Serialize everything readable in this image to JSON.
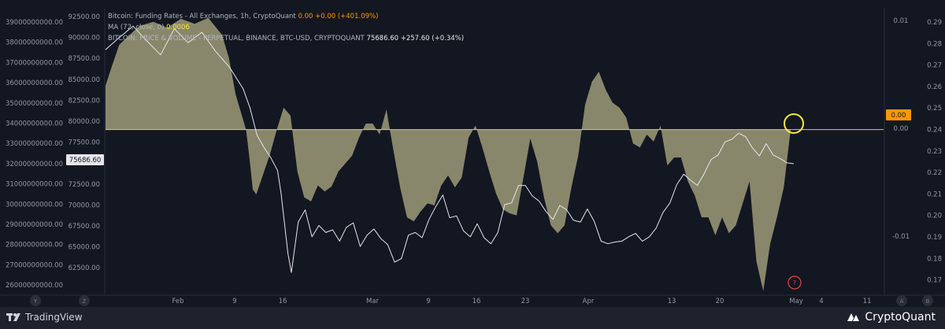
{
  "legend": {
    "line1_name": "Bitcoin: Funding Rates - All Exchanges, 1h, CryptoQuant",
    "line1_values": "0.00  +0.00 (+401.09%)",
    "line2_name": "MA (72, close, 0)",
    "line2_value": "0.0006",
    "line3_name": "BITCOIN: PRICE & VOLUME - PERPETUAL, BINANCE, BTC-USD, CRYPTOQUANT",
    "line3_price": "75686.60",
    "line3_change": "+257.60 (+0.34%)"
  },
  "left_axis_1": [
    "39000000000.00",
    "38000000000.00",
    "37000000000.00",
    "36000000000.00",
    "35000000000.00",
    "34000000000.00",
    "33000000000.00",
    "32000000000.00",
    "31000000000.00",
    "30000000000.00",
    "29000000000.00",
    "28000000000.00",
    "27000000000.00",
    "26000000000.00"
  ],
  "left_axis_2": [
    "92500.00",
    "90000.00",
    "87500.00",
    "85000.00",
    "82500.00",
    "80000.00",
    "77500.00",
    "75000.00",
    "72500.00",
    "70000.00",
    "67500.00",
    "65000.00",
    "62500.00"
  ],
  "price_badge": "75686.60",
  "right_axis_1": [
    "0.01",
    "0.00",
    "-0.01"
  ],
  "right_axis_2": [
    "0.29",
    "0.28",
    "0.27",
    "0.26",
    "0.25",
    "0.24",
    "0.23",
    "0.22",
    "0.21",
    "0.20",
    "0.19",
    "0.18",
    "0.17"
  ],
  "funding_badge": "0.00",
  "x_ticks": [
    "Feb",
    "9",
    "16",
    "Mar",
    "9",
    "16",
    "23",
    "Apr",
    "13",
    "20",
    "May",
    "4",
    "11"
  ],
  "corner_left_1": "Y",
  "corner_left_2": "Z",
  "corner_right_1": "A",
  "corner_right_2": "B",
  "marker_question": "?",
  "footer": {
    "left_brand": "TradingView",
    "right_brand": "CryptoQuant"
  },
  "colors": {
    "background": "#131722",
    "area_fill": "#8f8d70",
    "price_line": "#e6e6ea",
    "highlight_circle": "#f5e642",
    "marker_circle": "#e24a3b",
    "funding_badge": "#ff9800"
  },
  "chart_data": {
    "type": "area",
    "series": [
      {
        "name": "Bitcoin: Funding Rates - All Exchanges, 1h, CryptoQuant",
        "x": [
          0,
          0.01,
          0.02,
          0.04,
          0.05,
          0.07,
          0.09,
          0.11,
          0.13,
          0.15,
          0.17,
          0.18,
          0.19,
          0.205,
          0.21,
          0.215,
          0.22,
          0.225,
          0.23,
          0.24,
          0.25,
          0.26,
          0.27,
          0.28,
          0.29,
          0.3,
          0.31,
          0.32,
          0.33,
          0.34,
          0.35,
          0.36,
          0.37,
          0.38,
          0.39,
          0.4,
          0.41,
          0.42,
          0.43,
          0.44,
          0.45,
          0.46,
          0.47,
          0.48,
          0.49,
          0.5,
          0.51,
          0.52,
          0.53,
          0.54,
          0.55,
          0.56,
          0.57,
          0.58,
          0.59,
          0.6,
          0.61,
          0.62,
          0.63,
          0.64,
          0.65,
          0.66,
          0.67,
          0.68,
          0.69,
          0.7,
          0.71,
          0.72,
          0.73,
          0.74,
          0.75,
          0.76,
          0.77,
          0.78,
          0.79,
          0.8,
          0.81,
          0.82,
          0.83,
          0.84,
          0.85,
          0.86,
          0.87,
          0.88,
          0.89,
          0.9,
          0.91,
          0.92,
          0.93,
          0.94,
          0.95,
          0.96,
          0.97,
          0.98,
          0.99,
          1
        ],
        "y": [
          0.0044,
          0.0065,
          0.0085,
          0.0098,
          0.0104,
          0.0108,
          0.0102,
          0.0111,
          0.0106,
          0.0112,
          0.0095,
          0.0072,
          0.0035,
          0,
          -0.0028,
          -0.006,
          -0.0065,
          -0.0055,
          -0.0045,
          -0.0025,
          0,
          0.0022,
          0.0014,
          -0.0042,
          -0.0068,
          -0.0072,
          -0.0056,
          -0.0062,
          -0.0057,
          -0.0042,
          -0.0034,
          -0.0026,
          -0.0008,
          0.0006,
          0.0006,
          -0.0005,
          0.002,
          -0.002,
          -0.0058,
          -0.0088,
          -0.0092,
          -0.0082,
          -0.0074,
          -0.0076,
          -0.0056,
          -0.0046,
          -0.0058,
          -0.0048,
          -0.0008,
          0.0004,
          -0.0018,
          -0.0042,
          -0.0064,
          -0.008,
          -0.0084,
          -0.0086,
          -0.0048,
          -0.0009,
          -0.0032,
          -0.0068,
          -0.0096,
          -0.0104,
          -0.0096,
          -0.0058,
          -0.0026,
          0.0025,
          0.0048,
          0.0058,
          0.004,
          0.0027,
          0.0022,
          0.0012,
          -0.0014,
          -0.0018,
          -0.0005,
          -0.0012,
          0.0004,
          -0.0036,
          -0.0028,
          -0.0028,
          -0.0052,
          -0.0066,
          -0.0088,
          -0.0088,
          -0.0106,
          -0.0088,
          -0.0104,
          -0.0096,
          -0.0074,
          -0.0052,
          -0.0132,
          -0.0162,
          -0.0115,
          -0.0088,
          -0.0058,
          0
        ],
        "ylim": [
          -0.0166,
          0.0122
        ]
      },
      {
        "name": "BITCOIN: PRICE & VOLUME - PERPETUAL, BINANCE, BTC-USD, CRYPTOQUANT",
        "x": [
          0,
          0.02,
          0.04,
          0.06,
          0.08,
          0.1,
          0.12,
          0.14,
          0.16,
          0.18,
          0.2,
          0.21,
          0.22,
          0.23,
          0.24,
          0.25,
          0.255,
          0.26,
          0.265,
          0.27,
          0.28,
          0.29,
          0.3,
          0.31,
          0.32,
          0.33,
          0.34,
          0.35,
          0.36,
          0.37,
          0.38,
          0.39,
          0.4,
          0.41,
          0.42,
          0.43,
          0.44,
          0.45,
          0.46,
          0.47,
          0.48,
          0.49,
          0.5,
          0.51,
          0.52,
          0.53,
          0.54,
          0.55,
          0.56,
          0.57,
          0.58,
          0.59,
          0.6,
          0.61,
          0.62,
          0.63,
          0.64,
          0.65,
          0.66,
          0.67,
          0.68,
          0.69,
          0.7,
          0.71,
          0.72,
          0.73,
          0.74,
          0.75,
          0.76,
          0.77,
          0.78,
          0.79,
          0.8,
          0.81,
          0.82,
          0.83,
          0.84,
          0.85,
          0.86,
          0.87,
          0.88,
          0.89,
          0.9,
          0.91,
          0.92,
          0.93,
          0.94,
          0.95,
          0.96,
          0.97,
          0.98,
          0.99,
          1
        ],
        "y": [
          88800,
          90200,
          91500,
          89800,
          88200,
          91200,
          89600,
          90800,
          88600,
          86800,
          84300,
          82100,
          79000,
          77600,
          76400,
          74900,
          72300,
          68900,
          65400,
          63200,
          69000,
          70400,
          67300,
          68600,
          67800,
          68100,
          66800,
          68400,
          68900,
          66200,
          67500,
          68200,
          67100,
          66400,
          64400,
          64800,
          67500,
          67800,
          67200,
          69300,
          70800,
          72100,
          69500,
          69700,
          68000,
          67300,
          68800,
          67200,
          66500,
          67800,
          71000,
          71200,
          73200,
          73200,
          72000,
          71400,
          70200,
          69300,
          70900,
          70400,
          69200,
          69000,
          70500,
          69100,
          66800,
          66500,
          66700,
          66800,
          67300,
          67700,
          66800,
          67300,
          68300,
          70100,
          71200,
          73300,
          74500,
          73800,
          73200,
          74600,
          76200,
          76700,
          78200,
          78500,
          79200,
          78800,
          77500,
          76600,
          78000,
          76700,
          76300,
          75800,
          75700
        ],
        "ylim": [
          60600,
          93600
        ]
      }
    ],
    "legend_placement": "top-left",
    "grid": false,
    "annotations": [
      "yellow circle at latest funding rate",
      "red circle marker near May"
    ]
  }
}
